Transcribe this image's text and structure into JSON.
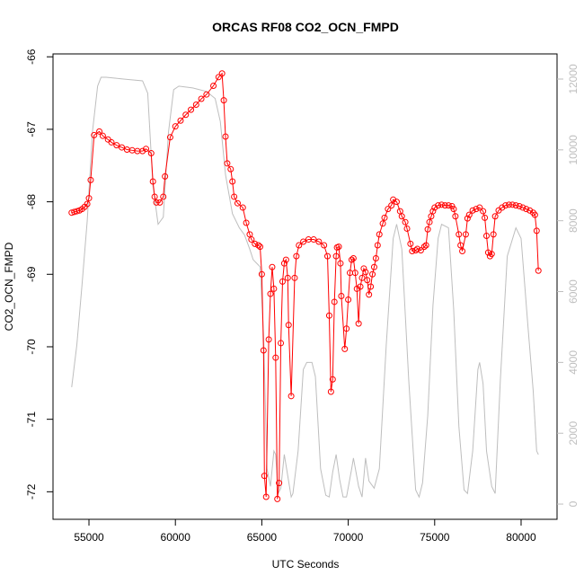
{
  "chart_data": {
    "type": "line",
    "title": "ORCAS RF08 CO2_OCN_FMPD",
    "xlabel": "UTC Seconds",
    "ylabel": "CO2_OCN_FMPD",
    "xlim": [
      52920,
      82080
    ],
    "ylim": [
      -72.38,
      -65.96
    ],
    "y2lim": [
      -430,
      12710
    ],
    "xticks": [
      55000,
      60000,
      65000,
      70000,
      75000,
      80000
    ],
    "yticks": [
      -66,
      -67,
      -68,
      -69,
      -70,
      -71,
      -72
    ],
    "y2ticks": [
      0,
      2000,
      4000,
      6000,
      8000,
      10000,
      12000
    ],
    "series": [
      {
        "color": "#bebebe",
        "axis": "y2",
        "x": [
          54000,
          54300,
          54600,
          54900,
          55200,
          55500,
          55700,
          56000,
          57000,
          58100,
          58400,
          58700,
          59000,
          59300,
          59600,
          59900,
          60200,
          61000,
          61800,
          62300,
          62600,
          62900,
          63300,
          63700,
          64000,
          64300,
          64500,
          64700,
          64900,
          65100,
          65300,
          65500,
          65700,
          65800,
          65950,
          66100,
          66300,
          66500,
          66700,
          66800,
          67100,
          67400,
          67600,
          67900,
          68100,
          68400,
          68700,
          68900,
          69100,
          69300,
          69500,
          69700,
          69900,
          70200,
          70300,
          70600,
          70800,
          71000,
          71200,
          71500,
          71800,
          72200,
          72600,
          72800,
          73100,
          73500,
          73900,
          74100,
          74300,
          74600,
          74900,
          75200,
          75400,
          75800,
          76100,
          76400,
          76700,
          76900,
          77200,
          77500,
          77600,
          77800,
          78000,
          78300,
          78500,
          78800,
          79200,
          79700,
          80000,
          80400,
          80700,
          80900,
          81000
        ],
        "values": [
          3300,
          4500,
          6200,
          8000,
          10500,
          11800,
          12050,
          12050,
          12000,
          11950,
          11600,
          9000,
          7900,
          8100,
          10500,
          11700,
          11800,
          11750,
          11650,
          11450,
          10800,
          9300,
          8200,
          7800,
          7600,
          7200,
          6900,
          6800,
          6700,
          4800,
          1000,
          500,
          1500,
          1400,
          300,
          450,
          1400,
          800,
          200,
          300,
          1500,
          3800,
          4000,
          4000,
          3600,
          1000,
          250,
          200,
          900,
          1400,
          700,
          200,
          200,
          1000,
          1300,
          500,
          200,
          1300,
          650,
          450,
          1000,
          4500,
          7500,
          7900,
          7200,
          3500,
          400,
          200,
          600,
          2500,
          5600,
          7500,
          7900,
          7800,
          5500,
          2200,
          400,
          300,
          1500,
          3800,
          4000,
          3400,
          1500,
          500,
          300,
          3500,
          7000,
          7800,
          7500,
          5000,
          3200,
          1500,
          1400
        ]
      },
      {
        "color": "#ff0000",
        "axis": "y",
        "x": [
          54000,
          54150,
          54300,
          54450,
          54600,
          54750,
          54900,
          55000,
          55100,
          55300,
          55600,
          55800,
          56100,
          56300,
          56600,
          56900,
          57200,
          57500,
          57800,
          58100,
          58300,
          58600,
          58700,
          58800,
          58900,
          59100,
          59300,
          59400,
          59700,
          60000,
          60300,
          60600,
          60900,
          61200,
          61500,
          61800,
          62200,
          62500,
          62700,
          62800,
          62900,
          63000,
          63200,
          63300,
          63400,
          63600,
          63900,
          64100,
          64300,
          64400,
          64600,
          64800,
          64900,
          65000,
          65100,
          65150,
          65250,
          65400,
          65500,
          65600,
          65700,
          65800,
          65900,
          66000,
          66100,
          66200,
          66300,
          66400,
          66500,
          66550,
          66700,
          66900,
          67000,
          67150,
          67400,
          67700,
          68000,
          68300,
          68600,
          68800,
          68900,
          69000,
          69100,
          69200,
          69300,
          69350,
          69450,
          69550,
          69600,
          69800,
          69900,
          70000,
          70100,
          70200,
          70300,
          70400,
          70500,
          70600,
          70700,
          70800,
          70900,
          71000,
          71100,
          71200,
          71300,
          71400,
          71500,
          71600,
          71700,
          71800,
          72000,
          72100,
          72300,
          72500,
          72600,
          72800,
          73000,
          73100,
          73300,
          73400,
          73600,
          73700,
          73900,
          74000,
          74200,
          74400,
          74500,
          74600,
          74700,
          74800,
          74900,
          75000,
          75200,
          75400,
          75600,
          75800,
          76000,
          76100,
          76200,
          76400,
          76500,
          76600,
          76800,
          76900,
          77000,
          77200,
          77400,
          77600,
          77800,
          77900,
          78000,
          78100,
          78200,
          78300,
          78400,
          78500,
          78700,
          78900,
          79100,
          79300,
          79500,
          79700,
          79900,
          80100,
          80300,
          80500,
          80700,
          80800,
          80900,
          81000
        ],
        "values": [
          -68.15,
          -68.14,
          -68.13,
          -68.12,
          -68.1,
          -68.07,
          -68.03,
          -67.95,
          -67.7,
          -67.08,
          -67.03,
          -67.09,
          -67.14,
          -67.18,
          -67.22,
          -67.25,
          -67.28,
          -67.29,
          -67.3,
          -67.3,
          -67.27,
          -67.33,
          -67.72,
          -67.93,
          -68.01,
          -68.01,
          -67.93,
          -67.65,
          -67.11,
          -66.96,
          -66.88,
          -66.8,
          -66.73,
          -66.66,
          -66.58,
          -66.52,
          -66.4,
          -66.28,
          -66.23,
          -66.6,
          -67.1,
          -67.47,
          -67.55,
          -67.72,
          -67.93,
          -68.02,
          -68.08,
          -68.29,
          -68.45,
          -68.52,
          -68.58,
          -68.6,
          -68.62,
          -69.0,
          -70.05,
          -71.78,
          -72.07,
          -69.9,
          -69.27,
          -68.9,
          -69.2,
          -70.15,
          -72.1,
          -71.88,
          -69.95,
          -69.1,
          -68.85,
          -68.8,
          -69.05,
          -69.7,
          -70.68,
          -69.05,
          -68.75,
          -68.6,
          -68.55,
          -68.52,
          -68.52,
          -68.55,
          -68.6,
          -68.75,
          -69.57,
          -70.62,
          -70.45,
          -69.38,
          -68.75,
          -68.63,
          -68.62,
          -68.85,
          -69.3,
          -70.03,
          -69.75,
          -69.35,
          -68.98,
          -68.8,
          -68.78,
          -68.98,
          -69.2,
          -69.68,
          -69.17,
          -69.05,
          -68.92,
          -68.97,
          -69.08,
          -69.28,
          -69.17,
          -69.0,
          -68.9,
          -68.78,
          -68.6,
          -68.45,
          -68.3,
          -68.22,
          -68.1,
          -68.05,
          -67.97,
          -68.0,
          -68.13,
          -68.2,
          -68.28,
          -68.37,
          -68.58,
          -68.68,
          -68.67,
          -68.65,
          -68.67,
          -68.62,
          -68.6,
          -68.38,
          -68.28,
          -68.2,
          -68.13,
          -68.08,
          -68.05,
          -68.04,
          -68.05,
          -68.05,
          -68.06,
          -68.1,
          -68.2,
          -68.45,
          -68.6,
          -68.68,
          -68.45,
          -68.23,
          -68.18,
          -68.12,
          -68.1,
          -68.08,
          -68.13,
          -68.22,
          -68.47,
          -68.7,
          -68.75,
          -68.72,
          -68.45,
          -68.2,
          -68.12,
          -68.08,
          -68.05,
          -68.04,
          -68.04,
          -68.05,
          -68.06,
          -68.08,
          -68.1,
          -68.12,
          -68.15,
          -68.18,
          -68.4,
          -68.95
        ]
      }
    ]
  }
}
